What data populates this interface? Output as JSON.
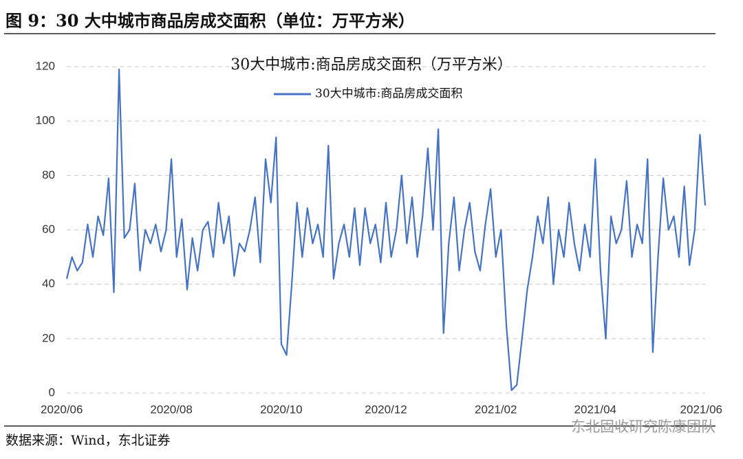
{
  "header": {
    "title": "图 9：30 大中城市商品房成交面积（单位：万平方米）"
  },
  "chart_data": {
    "type": "line",
    "title": "30大中城市:商品房成交面积（万平方米）",
    "categories": [
      "2020/06",
      null,
      null,
      null,
      null,
      null,
      null,
      null,
      null,
      null,
      null,
      null,
      null,
      null,
      null,
      null,
      null,
      null,
      null,
      null,
      "2020/08",
      null,
      null,
      null,
      null,
      null,
      null,
      null,
      null,
      null,
      null,
      null,
      null,
      null,
      null,
      null,
      null,
      null,
      null,
      null,
      null,
      "2020/10",
      null,
      null,
      null,
      null,
      null,
      null,
      null,
      null,
      null,
      null,
      null,
      null,
      null,
      null,
      null,
      null,
      null,
      null,
      null,
      "2020/12",
      null,
      null,
      null,
      null,
      null,
      null,
      null,
      null,
      null,
      null,
      null,
      null,
      null,
      null,
      null,
      null,
      null,
      null,
      null,
      null,
      "2021/02",
      null,
      null,
      null,
      null,
      null,
      null,
      null,
      null,
      null,
      null,
      null,
      null,
      null,
      null,
      null,
      null,
      null,
      null,
      "2021/04",
      null,
      null,
      null,
      null,
      null,
      null,
      null,
      null,
      null,
      null,
      null,
      null,
      null,
      null,
      null,
      null,
      null,
      null,
      null,
      null,
      "2021/06"
    ],
    "series": [
      {
        "name": "30大中城市:商品房成交面积",
        "color": "#4472c4",
        "values": [
          42,
          50,
          45,
          48,
          62,
          50,
          65,
          58,
          79,
          37,
          119,
          57,
          60,
          77,
          45,
          60,
          55,
          62,
          52,
          60,
          86,
          50,
          64,
          38,
          57,
          45,
          60,
          63,
          50,
          70,
          55,
          65,
          43,
          55,
          52,
          60,
          72,
          48,
          86,
          70,
          94,
          18,
          14,
          40,
          70,
          50,
          68,
          55,
          62,
          50,
          91,
          42,
          55,
          62,
          50,
          68,
          47,
          68,
          55,
          62,
          48,
          70,
          50,
          60,
          80,
          55,
          72,
          50,
          65,
          90,
          60,
          97,
          22,
          55,
          72,
          45,
          60,
          70,
          52,
          45,
          62,
          75,
          50,
          60,
          25,
          1,
          3,
          20,
          38,
          50,
          65,
          55,
          72,
          40,
          60,
          50,
          70,
          55,
          45,
          62,
          50,
          86,
          45,
          20,
          65,
          55,
          60,
          78,
          50,
          62,
          55,
          86,
          15,
          50,
          79,
          60,
          65,
          50,
          76,
          47,
          60,
          95,
          69
        ]
      }
    ],
    "ylim": [
      0,
      120
    ],
    "yticks": [
      0,
      20,
      40,
      60,
      80,
      100,
      120
    ],
    "grid": true
  },
  "footer": {
    "source": "数据来源：Wind，东北证券",
    "watermark": "东北固收研究陈康团队"
  }
}
